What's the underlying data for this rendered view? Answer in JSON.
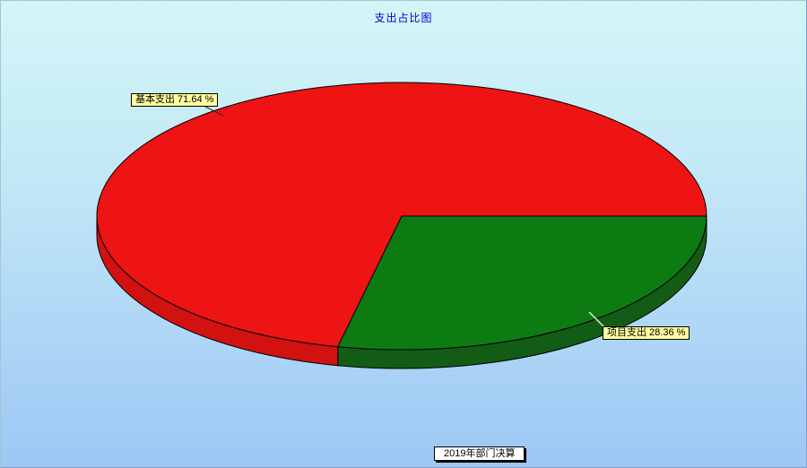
{
  "chart_data": {
    "type": "pie",
    "style": "pie3d",
    "title": "支出占比图",
    "unit": "%",
    "slices": [
      {
        "label": "基本支出",
        "value": 71.64,
        "callout": "基本支出 71.64 %",
        "color": "#ee1414",
        "side_color": "#d21111"
      },
      {
        "label": "项目支出",
        "value": 28.36,
        "callout": "项目支出 28.36 %",
        "color": "#0c7c12",
        "side_color": "#135c16"
      }
    ],
    "legend": {
      "label": "2019年部门决算",
      "position": "bottom-center"
    },
    "layout_hints": {
      "start_angle_deg": 0,
      "clockwise": true,
      "draw_order": [
        1,
        0
      ],
      "legend_border": "shadowed"
    }
  },
  "colors": {
    "background_top": "#d2f6f7",
    "background_bottom": "#9dc7f5",
    "title_text": "#0000cc",
    "callout_bg": "#ffff9e",
    "callout_border": "#000000",
    "pie_outline": "#000000",
    "legend_bg": "#ffffff",
    "leader_dark": "#2a2a2a",
    "leader_light": "#e8e8e8"
  }
}
